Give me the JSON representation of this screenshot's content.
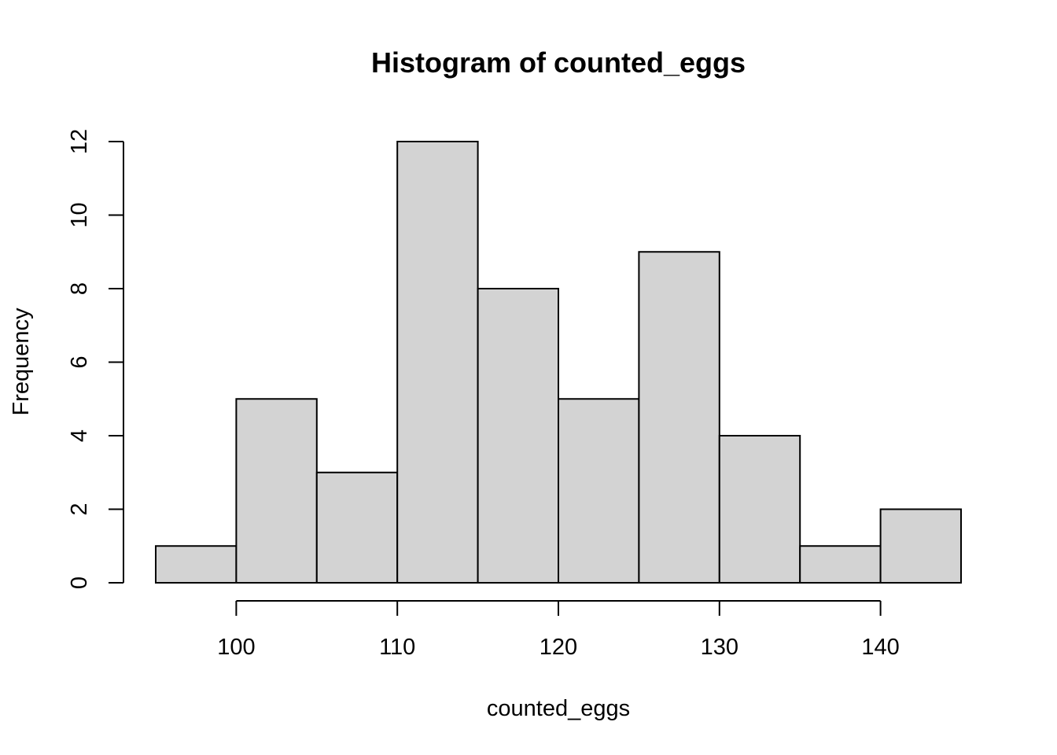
{
  "chart_data": {
    "type": "bar",
    "title": "Histogram of counted_eggs",
    "xlabel": "counted_eggs",
    "ylabel": "Frequency",
    "bins": [
      {
        "start": 95,
        "end": 100,
        "count": 1
      },
      {
        "start": 100,
        "end": 105,
        "count": 5
      },
      {
        "start": 105,
        "end": 110,
        "count": 3
      },
      {
        "start": 110,
        "end": 115,
        "count": 12
      },
      {
        "start": 115,
        "end": 120,
        "count": 8
      },
      {
        "start": 120,
        "end": 125,
        "count": 5
      },
      {
        "start": 125,
        "end": 130,
        "count": 9
      },
      {
        "start": 130,
        "end": 135,
        "count": 4
      },
      {
        "start": 135,
        "end": 140,
        "count": 1
      },
      {
        "start": 140,
        "end": 145,
        "count": 2
      }
    ],
    "x_ticks": [
      100,
      110,
      120,
      130,
      140
    ],
    "y_ticks": [
      0,
      2,
      4,
      6,
      8,
      10,
      12
    ],
    "xlim": [
      95,
      145
    ],
    "ylim": [
      0,
      12
    ],
    "grid": false,
    "legend": "none",
    "colors": {
      "bar_fill": "#d3d3d3",
      "bar_stroke": "#000000"
    }
  }
}
